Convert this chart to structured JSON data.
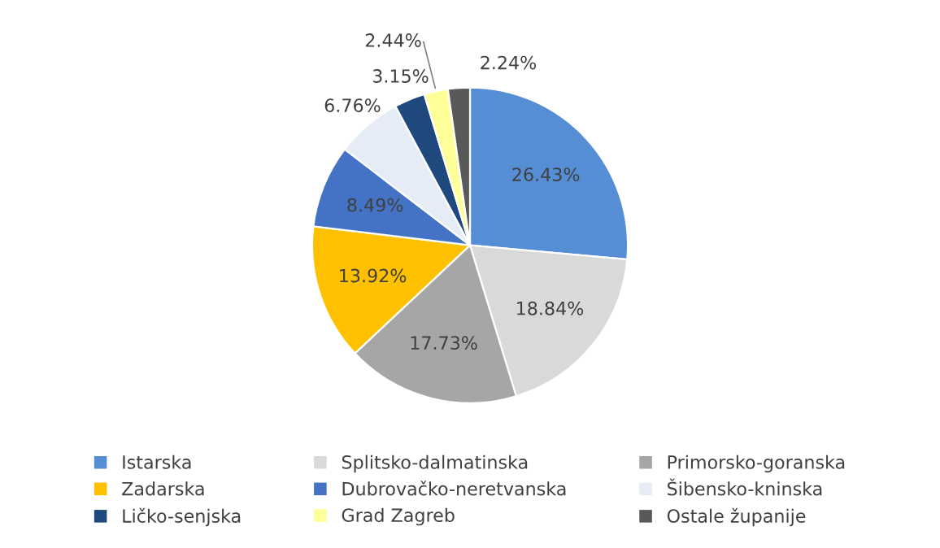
{
  "chart_data": {
    "type": "pie",
    "categories": [
      "Istarska",
      "Splitsko-dalmatinska",
      "Primorsko-goranska",
      "Zadarska",
      "Dubrovačko-neretvanska",
      "Šibensko-kninska",
      "Ličko-senjska",
      "Grad Zagreb",
      "Ostale županije"
    ],
    "values": [
      26.43,
      18.84,
      17.73,
      13.92,
      8.49,
      6.76,
      3.15,
      2.44,
      2.24
    ],
    "value_labels": [
      "26.43%",
      "18.84%",
      "17.73%",
      "13.92%",
      "8.49%",
      "6.76%",
      "3.15%",
      "2.44%",
      "2.24%"
    ],
    "colors": [
      "#558ed5",
      "#d9d9d9",
      "#a6a6a6",
      "#ffc000",
      "#4472c4",
      "#e6ecf5",
      "#1f497d",
      "#ffff99",
      "#595959"
    ],
    "legend": "bottom"
  }
}
